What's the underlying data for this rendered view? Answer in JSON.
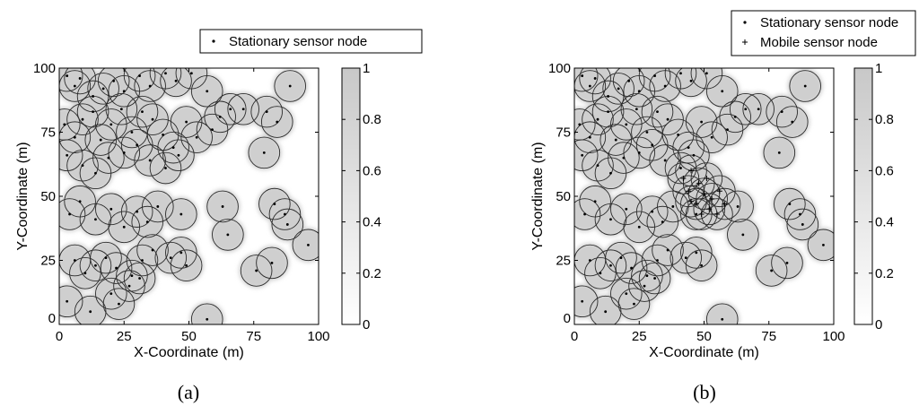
{
  "chart_data": [
    {
      "type": "scatter",
      "caption": "(a)",
      "xlabel": "X-Coordinate (m)",
      "ylabel": "Y-Coordinate (m)",
      "xlim": [
        0,
        100
      ],
      "ylim": [
        0,
        100
      ],
      "xticks": [
        0,
        25,
        50,
        75,
        100
      ],
      "yticks": [
        0,
        25,
        50,
        75,
        100
      ],
      "legend": {
        "placement": "top-right",
        "entries": [
          {
            "marker": "dot",
            "label": "Stationary sensor node"
          }
        ]
      },
      "colorbar": {
        "ticks": [
          0,
          0.2,
          0.4,
          0.6,
          0.8,
          1
        ],
        "range": [
          0,
          1
        ],
        "color_low": "#ffffff",
        "color_high": "#c8c8c8"
      },
      "sensing_radius": 6,
      "series": [
        {
          "name": "Stationary sensor node",
          "marker": "dot",
          "points": [
            [
              3,
              97
            ],
            [
              6,
              93
            ],
            [
              8,
              96
            ],
            [
              13,
              89
            ],
            [
              17,
              92
            ],
            [
              21,
              95
            ],
            [
              25,
              91
            ],
            [
              31,
              97
            ],
            [
              35,
              93
            ],
            [
              41,
              98
            ],
            [
              45,
              95
            ],
            [
              51,
              98
            ],
            [
              57,
              91
            ],
            [
              89,
              93
            ],
            [
              2,
              78
            ],
            [
              6,
              73
            ],
            [
              9,
              80
            ],
            [
              13,
              83
            ],
            [
              16,
              72
            ],
            [
              20,
              78
            ],
            [
              24,
              84
            ],
            [
              28,
              75
            ],
            [
              32,
              83
            ],
            [
              36,
              80
            ],
            [
              40,
              74
            ],
            [
              44,
              69
            ],
            [
              49,
              79
            ],
            [
              53,
              73
            ],
            [
              59,
              76
            ],
            [
              62,
              81
            ],
            [
              66,
              84
            ],
            [
              71,
              84
            ],
            [
              80,
              83
            ],
            [
              84,
              79
            ],
            [
              3,
              66
            ],
            [
              9,
              62
            ],
            [
              14,
              59
            ],
            [
              19,
              65
            ],
            [
              25,
              67
            ],
            [
              30,
              70
            ],
            [
              35,
              64
            ],
            [
              41,
              61
            ],
            [
              46,
              66
            ],
            [
              79,
              67
            ],
            [
              4,
              43
            ],
            [
              8,
              48
            ],
            [
              14,
              41
            ],
            [
              20,
              45
            ],
            [
              25,
              38
            ],
            [
              30,
              44
            ],
            [
              34,
              40
            ],
            [
              38,
              46
            ],
            [
              47,
              43
            ],
            [
              63,
              46
            ],
            [
              65,
              35
            ],
            [
              83,
              47
            ],
            [
              87,
              43
            ],
            [
              88,
              39
            ],
            [
              96,
              31
            ],
            [
              6,
              25
            ],
            [
              10,
              20
            ],
            [
              14,
              23
            ],
            [
              18,
              26
            ],
            [
              22,
              22
            ],
            [
              28,
              19
            ],
            [
              32,
              25
            ],
            [
              36,
              29
            ],
            [
              43,
              26
            ],
            [
              47,
              28
            ],
            [
              49,
              23
            ],
            [
              76,
              21
            ],
            [
              82,
              24
            ],
            [
              3,
              9
            ],
            [
              12,
              5
            ],
            [
              20,
              12
            ],
            [
              23,
              8
            ],
            [
              27,
              15
            ],
            [
              31,
              18
            ],
            [
              57,
              2
            ]
          ]
        }
      ]
    },
    {
      "type": "scatter",
      "caption": "(b)",
      "xlabel": "X-Coordinate (m)",
      "ylabel": "Y-Coordinate (m)",
      "xlim": [
        0,
        100
      ],
      "ylim": [
        0,
        100
      ],
      "xticks": [
        0,
        25,
        50,
        75,
        100
      ],
      "yticks": [
        0,
        25,
        50,
        75,
        100
      ],
      "legend": {
        "placement": "top-right",
        "entries": [
          {
            "marker": "dot",
            "label": "Stationary sensor node"
          },
          {
            "marker": "plus",
            "label": "Mobile sensor node"
          }
        ]
      },
      "colorbar": {
        "ticks": [
          0,
          0.2,
          0.4,
          0.6,
          0.8,
          1
        ],
        "range": [
          0,
          1
        ],
        "color_low": "#ffffff",
        "color_high": "#c8c8c8"
      },
      "sensing_radius": 6,
      "series": [
        {
          "name": "Stationary sensor node",
          "marker": "dot",
          "points": [
            [
              3,
              97
            ],
            [
              6,
              93
            ],
            [
              8,
              96
            ],
            [
              13,
              89
            ],
            [
              17,
              92
            ],
            [
              21,
              95
            ],
            [
              25,
              91
            ],
            [
              31,
              97
            ],
            [
              35,
              93
            ],
            [
              41,
              98
            ],
            [
              45,
              95
            ],
            [
              51,
              98
            ],
            [
              57,
              91
            ],
            [
              89,
              93
            ],
            [
              2,
              78
            ],
            [
              6,
              73
            ],
            [
              9,
              80
            ],
            [
              13,
              83
            ],
            [
              16,
              72
            ],
            [
              20,
              78
            ],
            [
              24,
              84
            ],
            [
              28,
              75
            ],
            [
              32,
              83
            ],
            [
              36,
              80
            ],
            [
              40,
              74
            ],
            [
              44,
              69
            ],
            [
              49,
              79
            ],
            [
              53,
              73
            ],
            [
              59,
              76
            ],
            [
              62,
              81
            ],
            [
              66,
              84
            ],
            [
              71,
              84
            ],
            [
              80,
              83
            ],
            [
              84,
              79
            ],
            [
              3,
              66
            ],
            [
              9,
              62
            ],
            [
              14,
              59
            ],
            [
              19,
              65
            ],
            [
              25,
              67
            ],
            [
              30,
              70
            ],
            [
              35,
              64
            ],
            [
              41,
              61
            ],
            [
              46,
              66
            ],
            [
              79,
              67
            ],
            [
              4,
              43
            ],
            [
              8,
              48
            ],
            [
              14,
              41
            ],
            [
              20,
              45
            ],
            [
              25,
              38
            ],
            [
              30,
              44
            ],
            [
              34,
              40
            ],
            [
              38,
              46
            ],
            [
              47,
              43
            ],
            [
              63,
              46
            ],
            [
              65,
              35
            ],
            [
              83,
              47
            ],
            [
              87,
              43
            ],
            [
              88,
              39
            ],
            [
              96,
              31
            ],
            [
              6,
              25
            ],
            [
              10,
              20
            ],
            [
              14,
              23
            ],
            [
              18,
              26
            ],
            [
              22,
              22
            ],
            [
              28,
              19
            ],
            [
              32,
              25
            ],
            [
              36,
              29
            ],
            [
              43,
              26
            ],
            [
              47,
              28
            ],
            [
              49,
              23
            ],
            [
              76,
              21
            ],
            [
              82,
              24
            ],
            [
              3,
              9
            ],
            [
              12,
              5
            ],
            [
              20,
              12
            ],
            [
              23,
              8
            ],
            [
              27,
              15
            ],
            [
              31,
              18
            ],
            [
              57,
              2
            ]
          ]
        },
        {
          "name": "Mobile sensor node",
          "marker": "plus",
          "points": [
            [
              42,
              57
            ],
            [
              45,
              60
            ],
            [
              48,
              55
            ],
            [
              44,
              52
            ],
            [
              50,
              51
            ],
            [
              53,
              49
            ],
            [
              56,
              52
            ],
            [
              58,
              47
            ],
            [
              47,
              47
            ],
            [
              52,
              45
            ],
            [
              55,
              43
            ],
            [
              49,
              43
            ],
            [
              45,
              48
            ],
            [
              51,
              57
            ]
          ]
        }
      ]
    }
  ]
}
